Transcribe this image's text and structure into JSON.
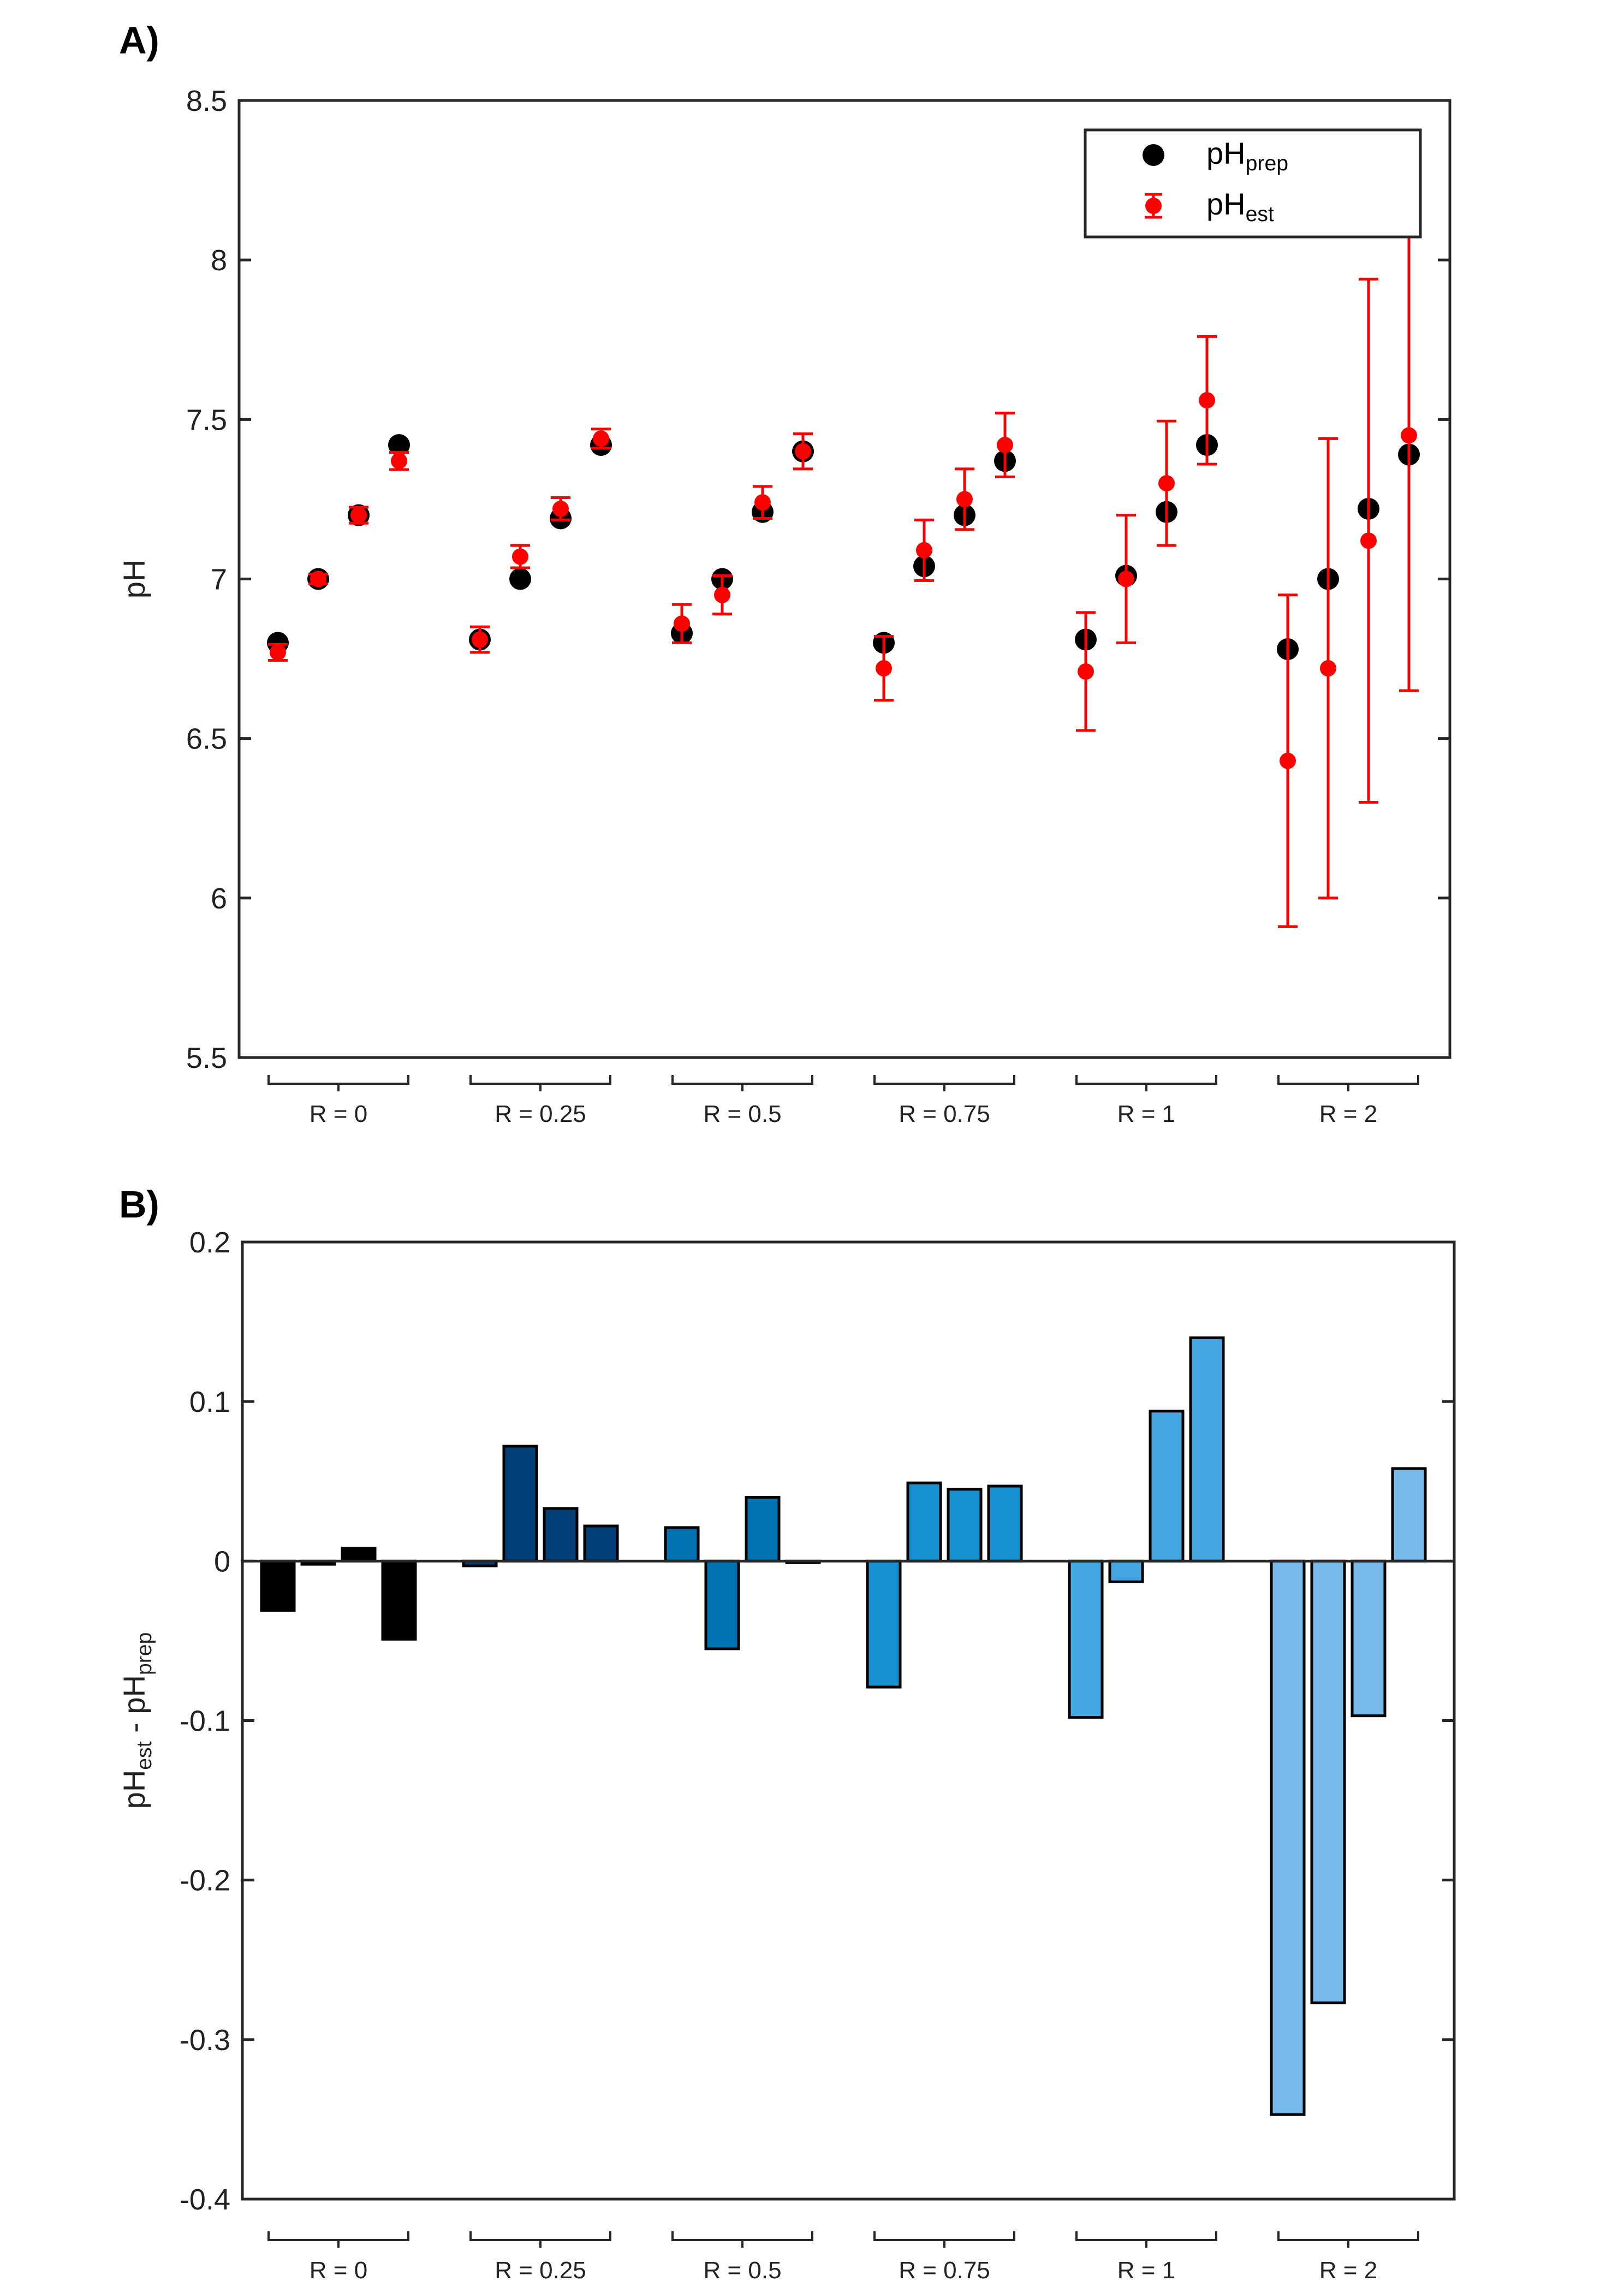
{
  "chart_data": [
    {
      "type": "scatter",
      "panel_label": "A)",
      "ylabel": "pH",
      "ylim": [
        5.5,
        8.5
      ],
      "yticks": [
        "5.5",
        "6",
        "6.5",
        "7",
        "7.5",
        "8",
        "8.5"
      ],
      "groups": [
        "R = 0",
        "R = 0.25",
        "R = 0.5",
        "R = 0.75",
        "R = 1",
        "R = 2"
      ],
      "legend": {
        "position": "top-right",
        "entries": [
          {
            "base": "pH",
            "sub": "prep"
          },
          {
            "base": "pH",
            "sub": "est"
          }
        ]
      },
      "series": [
        {
          "name": "pHprep",
          "color": "#000000",
          "values": [
            [
              6.8,
              7.0,
              7.2,
              7.42
            ],
            [
              6.81,
              7.0,
              7.19,
              7.42
            ],
            [
              6.83,
              7.0,
              7.21,
              7.4
            ],
            [
              6.8,
              7.04,
              7.2,
              7.37
            ],
            [
              6.81,
              7.01,
              7.21,
              7.42
            ],
            [
              6.78,
              7.0,
              7.22,
              7.39
            ]
          ]
        },
        {
          "name": "pHest",
          "color": "#ff0000",
          "values": [
            [
              6.77,
              7.0,
              7.2,
              7.37
            ],
            [
              6.81,
              7.07,
              7.22,
              7.44
            ],
            [
              6.86,
              6.95,
              7.24,
              7.4
            ],
            [
              6.72,
              7.09,
              7.25,
              7.42
            ],
            [
              6.71,
              7.0,
              7.3,
              7.56
            ],
            [
              6.43,
              6.72,
              7.12,
              7.45
            ]
          ],
          "error": [
            [
              0.025,
              0.015,
              0.025,
              0.027
            ],
            [
              0.04,
              0.035,
              0.035,
              0.03
            ],
            [
              0.06,
              0.06,
              0.05,
              0.055
            ],
            [
              0.1,
              0.095,
              0.095,
              0.1
            ],
            [
              0.185,
              0.2,
              0.195,
              0.2
            ],
            [
              0.52,
              0.72,
              0.82,
              0.8
            ]
          ]
        }
      ]
    },
    {
      "type": "bar",
      "panel_label": "B)",
      "ylabel": {
        "parts": [
          {
            "base": "pH",
            "sub": "est"
          },
          {
            "base": " - pH",
            "sub": "prep"
          }
        ]
      },
      "ylim": [
        -0.4,
        0.2
      ],
      "yticks": [
        "-0.4",
        "-0.3",
        "-0.2",
        "-0.1",
        "0",
        "0.1",
        "0.2"
      ],
      "groups": [
        "R = 0",
        "R = 0.25",
        "R = 0.5",
        "R = 0.75",
        "R = 1",
        "R = 2"
      ],
      "group_colors": [
        "#000000",
        "#023e78",
        "#0072b0",
        "#1590d0",
        "#44a6e0",
        "#77b9e8"
      ],
      "values": [
        [
          -0.031,
          -0.002,
          0.008,
          -0.049
        ],
        [
          -0.003,
          0.072,
          0.033,
          0.022
        ],
        [
          0.021,
          -0.055,
          0.04,
          -0.001
        ],
        [
          -0.079,
          0.049,
          0.045,
          0.047
        ],
        [
          -0.098,
          -0.013,
          0.094,
          0.14
        ],
        [
          -0.347,
          -0.277,
          -0.097,
          0.058
        ]
      ]
    }
  ]
}
